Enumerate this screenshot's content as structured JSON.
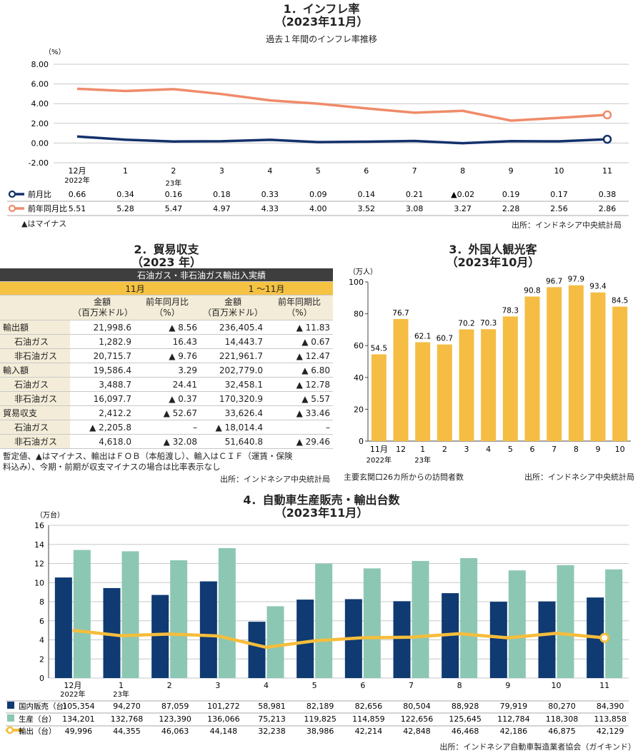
{
  "s1": {
    "title": "1．インフレ率",
    "subtitle": "（2023年11月）",
    "chart_title": "過去１年間のインフレ率推移",
    "unit": "（%）",
    "note": "▲はマイナス",
    "source": "出所：インドネシア中央統計局",
    "year_labels": [
      "2022年",
      "23年"
    ],
    "colors": {
      "mom": "#13316b",
      "yoy": "#ef8b6a"
    }
  },
  "s2": {
    "title": "2．貿易収支",
    "subtitle": "（2023 年）",
    "table_header": "石油ガス・非石油ガス輸出入実績",
    "period_nov": "11月",
    "period_ytd": "1 ～11月",
    "col_amount_1": "金額",
    "col_amount_2": "（百万米ドル）",
    "col_yoy_nov_1": "前年同月比",
    "col_yoy_ytd_1": "前年同期比",
    "col_pct": "（%）",
    "rows": [
      {
        "label": "輸出額",
        "nov_amt": "21,998.6",
        "nov_yoy": "▲ 8.56",
        "ytd_amt": "236,405.4",
        "ytd_yoy": "▲ 11.83",
        "indent": false
      },
      {
        "label": "石油ガス",
        "nov_amt": "1,282.9",
        "nov_yoy": "16.43",
        "ytd_amt": "14,443.7",
        "ytd_yoy": "▲ 0.67",
        "indent": true
      },
      {
        "label": "非石油ガス",
        "nov_amt": "20,715.7",
        "nov_yoy": "▲ 9.76",
        "ytd_amt": "221,961.7",
        "ytd_yoy": "▲ 12.47",
        "indent": true
      },
      {
        "label": "輸入額",
        "nov_amt": "19,586.4",
        "nov_yoy": "3.29",
        "ytd_amt": "202,779.0",
        "ytd_yoy": "▲ 6.80",
        "indent": false
      },
      {
        "label": "石油ガス",
        "nov_amt": "3,488.7",
        "nov_yoy": "24.41",
        "ytd_amt": "32,458.1",
        "ytd_yoy": "▲ 12.78",
        "indent": true
      },
      {
        "label": "非石油ガス",
        "nov_amt": "16,097.7",
        "nov_yoy": "▲ 0.37",
        "ytd_amt": "170,320.9",
        "ytd_yoy": "▲ 5.57",
        "indent": true
      },
      {
        "label": "貿易収支",
        "nov_amt": "2,412.2",
        "nov_yoy": "▲ 52.67",
        "ytd_amt": "33,626.4",
        "ytd_yoy": "▲ 33.46",
        "indent": false
      },
      {
        "label": "石油ガス",
        "nov_amt": "▲ 2,205.8",
        "nov_yoy": "–",
        "ytd_amt": "▲ 18,014.4",
        "ytd_yoy": "–",
        "indent": true
      },
      {
        "label": "非石油ガス",
        "nov_amt": "4,618.0",
        "nov_yoy": "▲ 32.08",
        "ytd_amt": "51,640.8",
        "ytd_yoy": "▲ 29.46",
        "indent": true
      }
    ],
    "note_1": "暫定値、▲はマイナス、輸出はＦＯＢ（本船渡し）、輸入はＣＩＦ（運賃・保険",
    "note_2": "料込み）、今期・前期が収支マイナスの場合は比率表示なし",
    "source": "出所：インドネシア中央統計局"
  },
  "s3": {
    "title": "3．外国人観光客",
    "subtitle": "（2023年10月）",
    "unit": "（万人）",
    "year_labels": [
      "2022年",
      "23年"
    ],
    "note": "主要玄関口26カ所からの訪問者数",
    "source": "出所：インドネシア中央統計局",
    "colors": {
      "bar": "#f5bd43"
    }
  },
  "s4": {
    "title": "4．自動車生産販売・輸出台数",
    "subtitle": "（2023年11月）",
    "unit": "（万台）",
    "year_labels": [
      "2022年",
      "23年"
    ],
    "source": "出所：インドネシア自動車製造業者協会（ガイキンド）",
    "colors": {
      "domestic": "#0f3a72",
      "production": "#8cc7b3",
      "export": "#f6bd3c"
    }
  },
  "chart_data": [
    {
      "type": "line",
      "categories": [
        "12月",
        "1",
        "2",
        "3",
        "4",
        "5",
        "6",
        "7",
        "8",
        "9",
        "10",
        "11"
      ],
      "ylim": [
        -2,
        8
      ],
      "yticks": [
        "-2.00",
        "0.00",
        "2.00",
        "4.00",
        "6.00",
        "8.00"
      ],
      "series": [
        {
          "name": "前月比",
          "values": [
            0.66,
            0.34,
            0.16,
            0.18,
            0.33,
            0.09,
            0.14,
            0.21,
            -0.02,
            0.19,
            0.17,
            0.38
          ],
          "labels": [
            "0.66",
            "0.34",
            "0.16",
            "0.18",
            "0.33",
            "0.09",
            "0.14",
            "0.21",
            "▲0.02",
            "0.19",
            "0.17",
            "0.38"
          ]
        },
        {
          "name": "前年同月比",
          "values": [
            5.51,
            5.28,
            5.47,
            4.97,
            4.33,
            4.0,
            3.52,
            3.08,
            3.27,
            2.28,
            2.56,
            2.86
          ],
          "labels": [
            "5.51",
            "5.28",
            "5.47",
            "4.97",
            "4.33",
            "4.00",
            "3.52",
            "3.08",
            "3.27",
            "2.28",
            "2.56",
            "2.86"
          ]
        }
      ],
      "grid": true
    },
    {
      "type": "bar",
      "categories": [
        "11月",
        "12",
        "1",
        "2",
        "3",
        "4",
        "5",
        "6",
        "7",
        "8",
        "9",
        "10"
      ],
      "values": [
        54.5,
        76.7,
        62.1,
        60.7,
        70.2,
        70.3,
        78.3,
        90.8,
        96.7,
        97.9,
        93.4,
        84.5
      ],
      "ylim": [
        0,
        100
      ],
      "yticks": [
        "0",
        "20",
        "40",
        "60",
        "80",
        "100"
      ]
    },
    {
      "type": "bar",
      "categories": [
        "12月",
        "1",
        "2",
        "3",
        "4",
        "5",
        "6",
        "7",
        "8",
        "9",
        "10",
        "11"
      ],
      "ylim": [
        0,
        16
      ],
      "yticks": [
        "0",
        "2",
        "4",
        "6",
        "8",
        "10",
        "12",
        "14",
        "16"
      ],
      "series": [
        {
          "name": "国内販売（台）",
          "kind": "bar",
          "values": [
            105354,
            94270,
            87059,
            101272,
            58981,
            82189,
            82656,
            80504,
            88928,
            79919,
            80270,
            84390
          ],
          "labels": [
            "105,354",
            "94,270",
            "87,059",
            "101,272",
            "58,981",
            "82,189",
            "82,656",
            "80,504",
            "88,928",
            "79,919",
            "80,270",
            "84,390"
          ]
        },
        {
          "name": "生産（台）",
          "kind": "bar",
          "values": [
            134201,
            132768,
            123390,
            136066,
            75213,
            119825,
            114859,
            122656,
            125645,
            112784,
            118308,
            113858
          ],
          "labels": [
            "134,201",
            "132,768",
            "123,390",
            "136,066",
            "75,213",
            "119,825",
            "114,859",
            "122,656",
            "125,645",
            "112,784",
            "118,308",
            "113,858"
          ]
        },
        {
          "name": "輸出（台）",
          "kind": "line",
          "values": [
            49996,
            44355,
            46063,
            44148,
            32238,
            38986,
            42214,
            42848,
            46468,
            42186,
            46875,
            42129
          ],
          "labels": [
            "49,996",
            "44,355",
            "46,063",
            "44,148",
            "32,238",
            "38,986",
            "42,214",
            "42,848",
            "46,468",
            "42,186",
            "46,875",
            "42,129"
          ]
        }
      ],
      "grid": true
    }
  ]
}
